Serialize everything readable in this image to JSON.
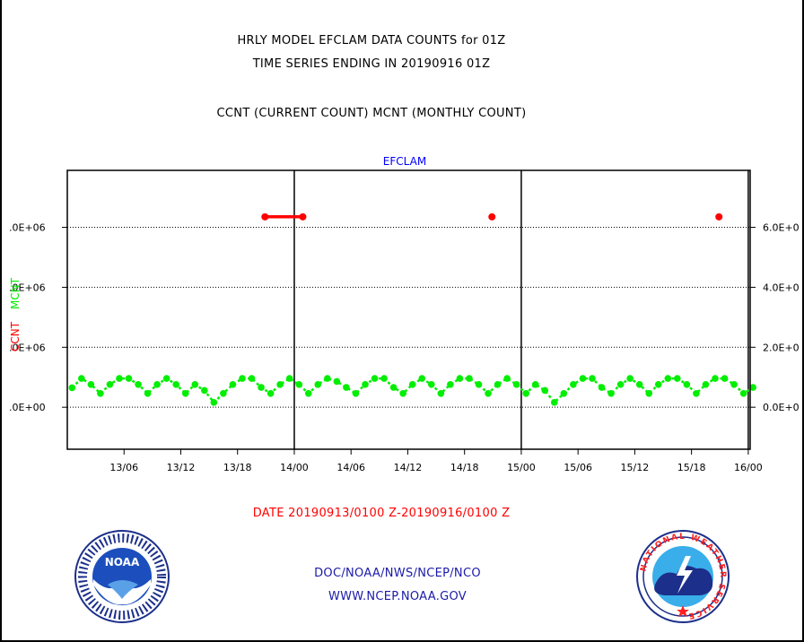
{
  "header": {
    "line1": "HRLY MODEL EFCLAM DATA COUNTS for 01Z",
    "line2": "TIME SERIES ENDING IN 20190916 01Z",
    "line3": "CCNT (CURRENT COUNT) MCNT (MONTHLY COUNT)"
  },
  "footer": {
    "date_range": "DATE 20190913/0100 Z-20190916/0100 Z",
    "org": "DOC/NOAA/NWS/NCEP/NCO",
    "url": "WWW.NCEP.NOAA.GOV"
  },
  "logos": {
    "noaa_text": "NOAA",
    "nws_text": "NATIONAL WEATHER SERVICE"
  },
  "colors": {
    "ccnt": "#ff0000",
    "mcnt": "#00ee00",
    "title": "#0000ff",
    "date": "#ff0000"
  },
  "chart_data": {
    "type": "line",
    "title": "EFCLAM",
    "left_axis_labels": {
      "ccnt": "CCNT",
      "mcnt": "MCNT"
    },
    "y_left_ticks": [
      ".0E+00",
      ".0E+06",
      ".0E+06",
      ".0E+06"
    ],
    "y_right_ticks": [
      "0.0E+0",
      "2.0E+0",
      "4.0E+0",
      "6.0E+0"
    ],
    "y_tick_values": [
      0,
      2000000,
      4000000,
      6000000
    ],
    "ylim": [
      -1400000,
      7900000
    ],
    "x_tick_labels": [
      "13/06",
      "13/12",
      "13/18",
      "14/00",
      "14/06",
      "14/12",
      "14/18",
      "15/00",
      "15/06",
      "15/12",
      "15/18",
      "16/00"
    ],
    "x_tick_hours": [
      5,
      11,
      17,
      23,
      29,
      35,
      41,
      47,
      53,
      59,
      65,
      71
    ],
    "xlim_hours": [
      -1,
      71.2
    ],
    "day_boundaries_hours": [
      23,
      47,
      71
    ],
    "grid": true,
    "series": [
      {
        "name": "CCNT",
        "segments": [
          [
            [
              19.9,
              6350000
            ],
            [
              23.9,
              6350000
            ]
          ],
          [
            [
              43.9,
              6350000
            ]
          ],
          [
            [
              67.9,
              6350000
            ]
          ]
        ]
      },
      {
        "name": "MCNT",
        "x_start_hour": -0.5,
        "x_step_hours": 1,
        "values": [
          650000,
          960000,
          760000,
          460000,
          760000,
          960000,
          960000,
          760000,
          460000,
          760000,
          960000,
          760000,
          460000,
          760000,
          560000,
          160000,
          460000,
          760000,
          960000,
          960000,
          660000,
          460000,
          760000,
          960000,
          760000,
          460000,
          760000,
          960000,
          860000,
          660000,
          460000,
          760000,
          960000,
          960000,
          660000,
          460000,
          760000,
          960000,
          760000,
          460000,
          760000,
          960000,
          960000,
          760000,
          460000,
          760000,
          960000,
          760000,
          460000,
          760000,
          560000,
          160000,
          460000,
          760000,
          960000,
          960000,
          660000,
          460000,
          760000,
          960000,
          760000,
          460000,
          760000,
          960000,
          960000,
          760000,
          460000,
          760000,
          960000,
          960000,
          760000,
          460000,
          660000
        ]
      }
    ]
  }
}
